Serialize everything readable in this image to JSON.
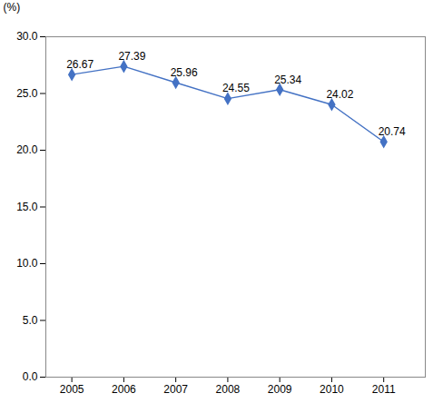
{
  "chart_data": {
    "type": "line",
    "x": [
      2005,
      2006,
      2007,
      2008,
      2009,
      2010,
      2011
    ],
    "values": [
      26.67,
      27.39,
      25.96,
      24.55,
      25.34,
      24.02,
      20.74
    ],
    "color": "#4472C4",
    "marker": "diamond",
    "y_label": "(%)",
    "xlim": [
      2004.5,
      2011.8
    ],
    "xticks": [
      2005,
      2006,
      2007,
      2008,
      2009,
      2010,
      2011
    ],
    "ylim": [
      0.0,
      30.0
    ],
    "yticks": [
      {
        "value": 0,
        "label": "0.0"
      },
      {
        "value": 5,
        "label": "5.0"
      },
      {
        "value": 10,
        "label": "10.0"
      },
      {
        "value": 15,
        "label": "15.0"
      },
      {
        "value": 20,
        "label": "20.0"
      },
      {
        "value": 25,
        "label": "25.0"
      },
      {
        "value": 30,
        "label": "30.0"
      }
    ],
    "data_labels": true,
    "grid": false
  }
}
